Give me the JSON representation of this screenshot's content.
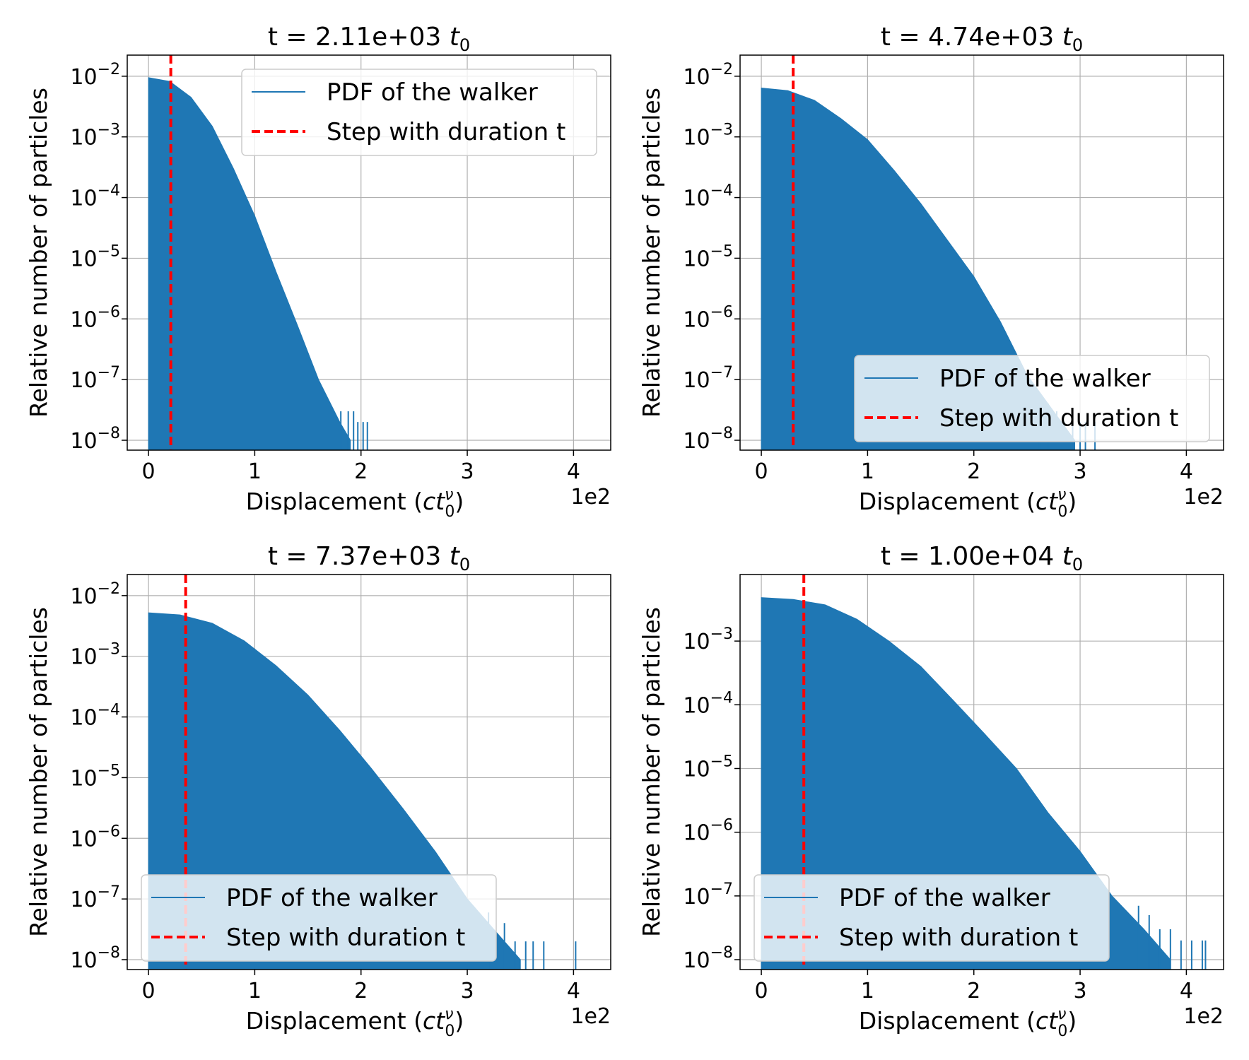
{
  "figure": {
    "layout": "2x2 grid"
  },
  "chart_data": [
    {
      "type": "area",
      "title": "t = 2.11e+03 t0",
      "title_parts": {
        "prefix": "t = 2.11e+03 ",
        "var": "t",
        "sub": "0"
      },
      "xlabel": "Displacement (ct0ν)",
      "ylabel": "Relative number of particles",
      "x_offset_text": "1e2",
      "xscale": "linear",
      "yscale": "log",
      "xlim": [
        -0.2,
        4.35
      ],
      "ylim": [
        1e-08,
        0.02
      ],
      "xticks": [
        0,
        1,
        2,
        3,
        4
      ],
      "xtick_labels": [
        "0",
        "1",
        "2",
        "3",
        "4"
      ],
      "yticks": [
        1e-08,
        1e-07,
        1e-06,
        1e-05,
        0.0001,
        0.001,
        0.01
      ],
      "ytick_labels": [
        {
          "base": "10",
          "exp": "−8"
        },
        {
          "base": "10",
          "exp": "−7"
        },
        {
          "base": "10",
          "exp": "−6"
        },
        {
          "base": "10",
          "exp": "−5"
        },
        {
          "base": "10",
          "exp": "−4"
        },
        {
          "base": "10",
          "exp": "−3"
        },
        {
          "base": "10",
          "exp": "−2"
        }
      ],
      "grid": true,
      "series": [
        {
          "name": "PDF of the walker",
          "color": "#1f77b4",
          "x": [
            0.0,
            0.2,
            0.4,
            0.6,
            0.8,
            1.0,
            1.2,
            1.4,
            1.6,
            1.8,
            1.9
          ],
          "y": [
            0.0095,
            0.0082,
            0.0045,
            0.0015,
            0.0003,
            5e-05,
            6e-06,
            8e-07,
            1e-07,
            2e-08,
            1e-08
          ],
          "tail_spikes": [
            {
              "x": 1.81,
              "y": 3e-08
            },
            {
              "x": 1.88,
              "y": 3e-08
            },
            {
              "x": 1.93,
              "y": 3e-08
            },
            {
              "x": 1.97,
              "y": 2e-08
            },
            {
              "x": 2.02,
              "y": 2e-08
            },
            {
              "x": 2.06,
              "y": 2e-08
            }
          ]
        },
        {
          "name": "Step with duration t",
          "color": "#ff0000",
          "style": "dashed",
          "vline_x": 0.21
        }
      ],
      "legend": {
        "placement": "upper right",
        "entries": [
          "PDF of the walker",
          "Step with duration t"
        ]
      }
    },
    {
      "type": "area",
      "title": "t = 4.74e+03 t0",
      "title_parts": {
        "prefix": "t = 4.74e+03 ",
        "var": "t",
        "sub": "0"
      },
      "xlabel": "Displacement (ct0ν)",
      "ylabel": "Relative number of particles",
      "x_offset_text": "1e2",
      "xscale": "linear",
      "yscale": "log",
      "xlim": [
        -0.2,
        4.35
      ],
      "ylim": [
        1e-08,
        0.02
      ],
      "xticks": [
        0,
        1,
        2,
        3,
        4
      ],
      "xtick_labels": [
        "0",
        "1",
        "2",
        "3",
        "4"
      ],
      "yticks": [
        1e-08,
        1e-07,
        1e-06,
        1e-05,
        0.0001,
        0.001,
        0.01
      ],
      "ytick_labels": [
        {
          "base": "10",
          "exp": "−8"
        },
        {
          "base": "10",
          "exp": "−7"
        },
        {
          "base": "10",
          "exp": "−6"
        },
        {
          "base": "10",
          "exp": "−5"
        },
        {
          "base": "10",
          "exp": "−4"
        },
        {
          "base": "10",
          "exp": "−3"
        },
        {
          "base": "10",
          "exp": "−2"
        }
      ],
      "grid": true,
      "series": [
        {
          "name": "PDF of the walker",
          "color": "#1f77b4",
          "x": [
            0.0,
            0.25,
            0.5,
            0.75,
            1.0,
            1.25,
            1.5,
            1.75,
            2.0,
            2.25,
            2.5,
            2.75,
            2.95
          ],
          "y": [
            0.0064,
            0.0058,
            0.004,
            0.002,
            0.0009,
            0.00028,
            8e-05,
            2e-05,
            5e-06,
            9e-07,
            1.2e-07,
            3e-08,
            1e-08
          ],
          "tail_spikes": [
            {
              "x": 2.62,
              "y": 6e-08
            },
            {
              "x": 2.7,
              "y": 4e-08
            },
            {
              "x": 2.78,
              "y": 3e-08
            },
            {
              "x": 2.85,
              "y": 2e-08
            },
            {
              "x": 2.93,
              "y": 2e-08
            },
            {
              "x": 3.0,
              "y": 2e-08
            },
            {
              "x": 3.05,
              "y": 2e-08
            },
            {
              "x": 3.14,
              "y": 2e-08
            }
          ]
        },
        {
          "name": "Step with duration t",
          "color": "#ff0000",
          "style": "dashed",
          "vline_x": 0.3
        }
      ],
      "legend": {
        "placement": "lower right",
        "entries": [
          "PDF of the walker",
          "Step with duration t"
        ]
      }
    },
    {
      "type": "area",
      "title": "t = 7.37e+03 t0",
      "title_parts": {
        "prefix": "t = 7.37e+03 ",
        "var": "t",
        "sub": "0"
      },
      "xlabel": "Displacement (ct0ν)",
      "ylabel": "Relative number of particles",
      "x_offset_text": "1e2",
      "xscale": "linear",
      "yscale": "log",
      "xlim": [
        -0.2,
        4.35
      ],
      "ylim": [
        1e-08,
        0.02
      ],
      "xticks": [
        0,
        1,
        2,
        3,
        4
      ],
      "xtick_labels": [
        "0",
        "1",
        "2",
        "3",
        "4"
      ],
      "yticks": [
        1e-08,
        1e-07,
        1e-06,
        1e-05,
        0.0001,
        0.001,
        0.01
      ],
      "ytick_labels": [
        {
          "base": "10",
          "exp": "−8"
        },
        {
          "base": "10",
          "exp": "−7"
        },
        {
          "base": "10",
          "exp": "−6"
        },
        {
          "base": "10",
          "exp": "−5"
        },
        {
          "base": "10",
          "exp": "−4"
        },
        {
          "base": "10",
          "exp": "−3"
        },
        {
          "base": "10",
          "exp": "−2"
        }
      ],
      "grid": true,
      "series": [
        {
          "name": "PDF of the walker",
          "color": "#1f77b4",
          "x": [
            0.0,
            0.3,
            0.6,
            0.9,
            1.2,
            1.5,
            1.8,
            2.1,
            2.4,
            2.7,
            3.0,
            3.3,
            3.5
          ],
          "y": [
            0.0052,
            0.0048,
            0.0035,
            0.0018,
            0.0007,
            0.00023,
            6e-05,
            1.4e-05,
            3e-06,
            6e-07,
            1e-07,
            2.5e-08,
            1e-08
          ],
          "tail_spikes": [
            {
              "x": 3.2,
              "y": 6e-08
            },
            {
              "x": 3.35,
              "y": 4e-08
            },
            {
              "x": 3.45,
              "y": 2e-08
            },
            {
              "x": 3.55,
              "y": 2e-08
            },
            {
              "x": 3.62,
              "y": 2e-08
            },
            {
              "x": 3.72,
              "y": 2e-08
            },
            {
              "x": 4.02,
              "y": 2e-08
            }
          ]
        },
        {
          "name": "Step with duration t",
          "color": "#ff0000",
          "style": "dashed",
          "vline_x": 0.35
        }
      ],
      "legend": {
        "placement": "lower left",
        "entries": [
          "PDF of the walker",
          "Step with duration t"
        ]
      }
    },
    {
      "type": "area",
      "title": "t = 1.00e+04 t0",
      "title_parts": {
        "prefix": "t = 1.00e+04 ",
        "var": "t",
        "sub": "0"
      },
      "xlabel": "Displacement (ct0ν)",
      "ylabel": "Relative number of particles",
      "x_offset_text": "1e2",
      "xscale": "linear",
      "yscale": "log",
      "xlim": [
        -0.2,
        4.35
      ],
      "ylim": [
        1e-08,
        0.01
      ],
      "xticks": [
        0,
        1,
        2,
        3,
        4
      ],
      "xtick_labels": [
        "0",
        "1",
        "2",
        "3",
        "4"
      ],
      "yticks": [
        1e-08,
        1e-07,
        1e-06,
        1e-05,
        0.0001,
        0.001
      ],
      "ytick_labels": [
        {
          "base": "10",
          "exp": "−8"
        },
        {
          "base": "10",
          "exp": "−7"
        },
        {
          "base": "10",
          "exp": "−6"
        },
        {
          "base": "10",
          "exp": "−5"
        },
        {
          "base": "10",
          "exp": "−4"
        },
        {
          "base": "10",
          "exp": "−3"
        }
      ],
      "grid": true,
      "series": [
        {
          "name": "PDF of the walker",
          "color": "#1f77b4",
          "x": [
            0.0,
            0.3,
            0.6,
            0.9,
            1.2,
            1.5,
            1.8,
            2.1,
            2.4,
            2.7,
            3.0,
            3.3,
            3.6,
            3.85
          ],
          "y": [
            0.0048,
            0.0045,
            0.0037,
            0.0022,
            0.001,
            0.0004,
            0.00012,
            3.5e-05,
            1e-05,
            2e-06,
            5e-07,
            1e-07,
            3e-08,
            1e-08
          ],
          "tail_spikes": [
            {
              "x": 3.55,
              "y": 7e-08
            },
            {
              "x": 3.65,
              "y": 5e-08
            },
            {
              "x": 3.75,
              "y": 3e-08
            },
            {
              "x": 3.85,
              "y": 3e-08
            },
            {
              "x": 3.95,
              "y": 2e-08
            },
            {
              "x": 4.05,
              "y": 2e-08
            },
            {
              "x": 4.15,
              "y": 2e-08
            },
            {
              "x": 4.18,
              "y": 2e-08
            }
          ]
        },
        {
          "name": "Step with duration t",
          "color": "#ff0000",
          "style": "dashed",
          "vline_x": 0.4
        }
      ],
      "legend": {
        "placement": "lower left",
        "entries": [
          "PDF of the walker",
          "Step with duration t"
        ]
      }
    }
  ]
}
